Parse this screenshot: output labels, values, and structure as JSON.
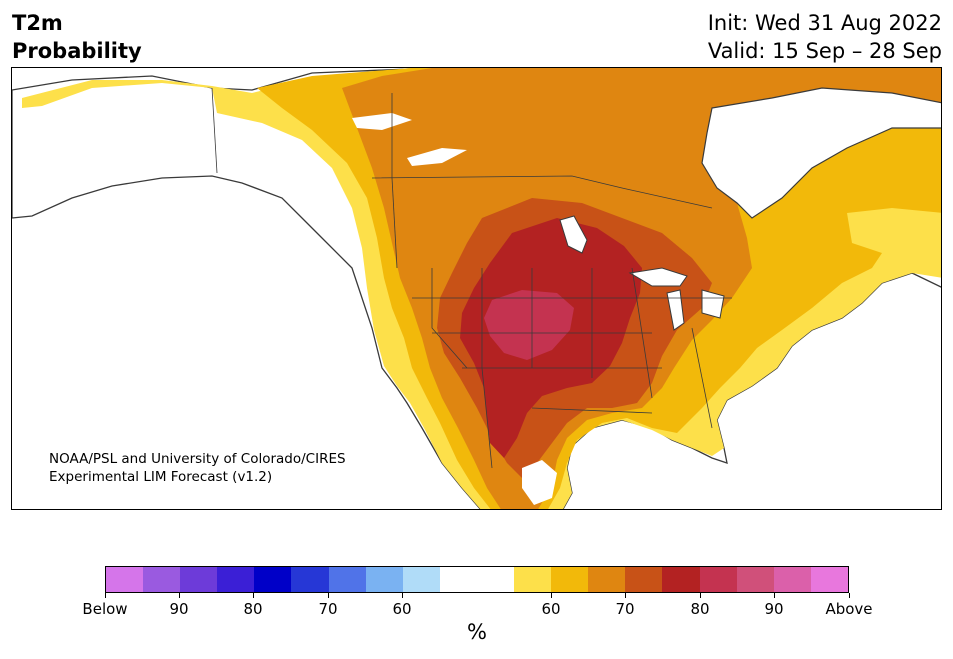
{
  "header": {
    "variable": "T2m",
    "product": "Probability",
    "init": "Init: Wed 31 Aug 2022",
    "valid": "Valid: 15 Sep – 28 Sep"
  },
  "credit": {
    "line1": "NOAA/PSL and University of Colorado/CIRES",
    "line2": "Experimental LIM Forecast (v1.2)"
  },
  "colorbar": {
    "colors": [
      "#d575ea",
      "#9a5ae0",
      "#6d3bd9",
      "#3b1fd6",
      "#0000c8",
      "#2637d6",
      "#5073e8",
      "#7ab2f2",
      "#b0dcf8",
      "#ffffff",
      "#ffffff",
      "#fde04a",
      "#f2b90a",
      "#df8611",
      "#c85217",
      "#b32222",
      "#c43350",
      "#d0507a",
      "#db60aa",
      "#e877dd"
    ],
    "tick_labels": [
      "Below",
      "90",
      "80",
      "70",
      "60",
      "60",
      "70",
      "80",
      "90",
      "Above"
    ],
    "unit": "%"
  },
  "map": {
    "region": "North America",
    "palette": {
      "yellow": "#fde04a",
      "gold": "#f2b90a",
      "orange": "#df8611",
      "burnt": "#c85217",
      "red": "#b32222",
      "crimson": "#c43350",
      "blue": "#b0dcf8",
      "coast": "#3a3a3a"
    }
  }
}
